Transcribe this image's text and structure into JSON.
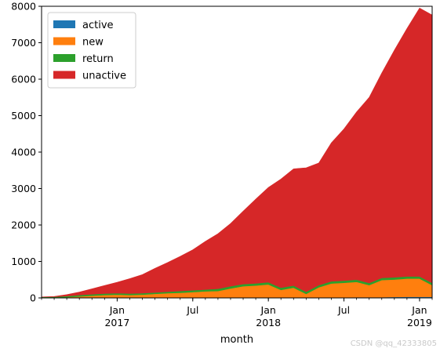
{
  "chart_data": {
    "type": "area",
    "stacked": true,
    "xlabel": "month",
    "ylabel": "",
    "ylim": [
      0,
      8000
    ],
    "yticks": [
      0,
      1000,
      2000,
      3000,
      4000,
      5000,
      6000,
      7000,
      8000
    ],
    "x": [
      "2016-07",
      "2016-08",
      "2016-09",
      "2016-10",
      "2016-11",
      "2016-12",
      "2017-01",
      "2017-02",
      "2017-03",
      "2017-04",
      "2017-05",
      "2017-06",
      "2017-07",
      "2017-08",
      "2017-09",
      "2017-10",
      "2017-11",
      "2017-12",
      "2018-01",
      "2018-02",
      "2018-03",
      "2018-04",
      "2018-05",
      "2018-06",
      "2018-07",
      "2018-08",
      "2018-09",
      "2018-10",
      "2018-11",
      "2018-12",
      "2019-01",
      "2019-02"
    ],
    "xticks": [
      {
        "date": "2017-01",
        "label": "Jan",
        "sublabel": "2017"
      },
      {
        "date": "2017-07",
        "label": "Jul",
        "sublabel": ""
      },
      {
        "date": "2018-01",
        "label": "Jan",
        "sublabel": "2018"
      },
      {
        "date": "2018-07",
        "label": "Jul",
        "sublabel": ""
      },
      {
        "date": "2019-01",
        "label": "Jan",
        "sublabel": "2019"
      }
    ],
    "legend_position": "top-left",
    "series": [
      {
        "name": "active",
        "color": "#1f77b4",
        "values": [
          0,
          0,
          0,
          0,
          0,
          0,
          0,
          0,
          0,
          0,
          0,
          0,
          0,
          0,
          0,
          0,
          0,
          0,
          10,
          10,
          10,
          10,
          10,
          15,
          15,
          20,
          20,
          20,
          25,
          30,
          30,
          30
        ]
      },
      {
        "name": "new",
        "color": "#ff7f0e",
        "values": [
          5,
          10,
          20,
          40,
          60,
          80,
          90,
          80,
          90,
          110,
          130,
          140,
          160,
          180,
          190,
          260,
          320,
          340,
          360,
          210,
          270,
          100,
          280,
          380,
          400,
          420,
          330,
          470,
          480,
          500,
          500,
          320
        ]
      },
      {
        "name": "return",
        "color": "#2ca02c",
        "values": [
          20,
          20,
          30,
          40,
          40,
          40,
          40,
          40,
          40,
          40,
          40,
          50,
          50,
          50,
          60,
          60,
          60,
          60,
          60,
          60,
          60,
          60,
          60,
          60,
          60,
          60,
          60,
          60,
          60,
          60,
          60,
          60
        ]
      },
      {
        "name": "unactive",
        "color": "#d62728",
        "values": [
          0,
          10,
          40,
          80,
          150,
          220,
          300,
          410,
          510,
          660,
          800,
          950,
          1110,
          1320,
          1510,
          1720,
          2000,
          2310,
          2600,
          2980,
          3200,
          3400,
          3350,
          3800,
          4160,
          4600,
          5090,
          5620,
          6230,
          6800,
          7360,
          7350
        ]
      }
    ]
  },
  "watermark": "CSDN @qq_42333805"
}
